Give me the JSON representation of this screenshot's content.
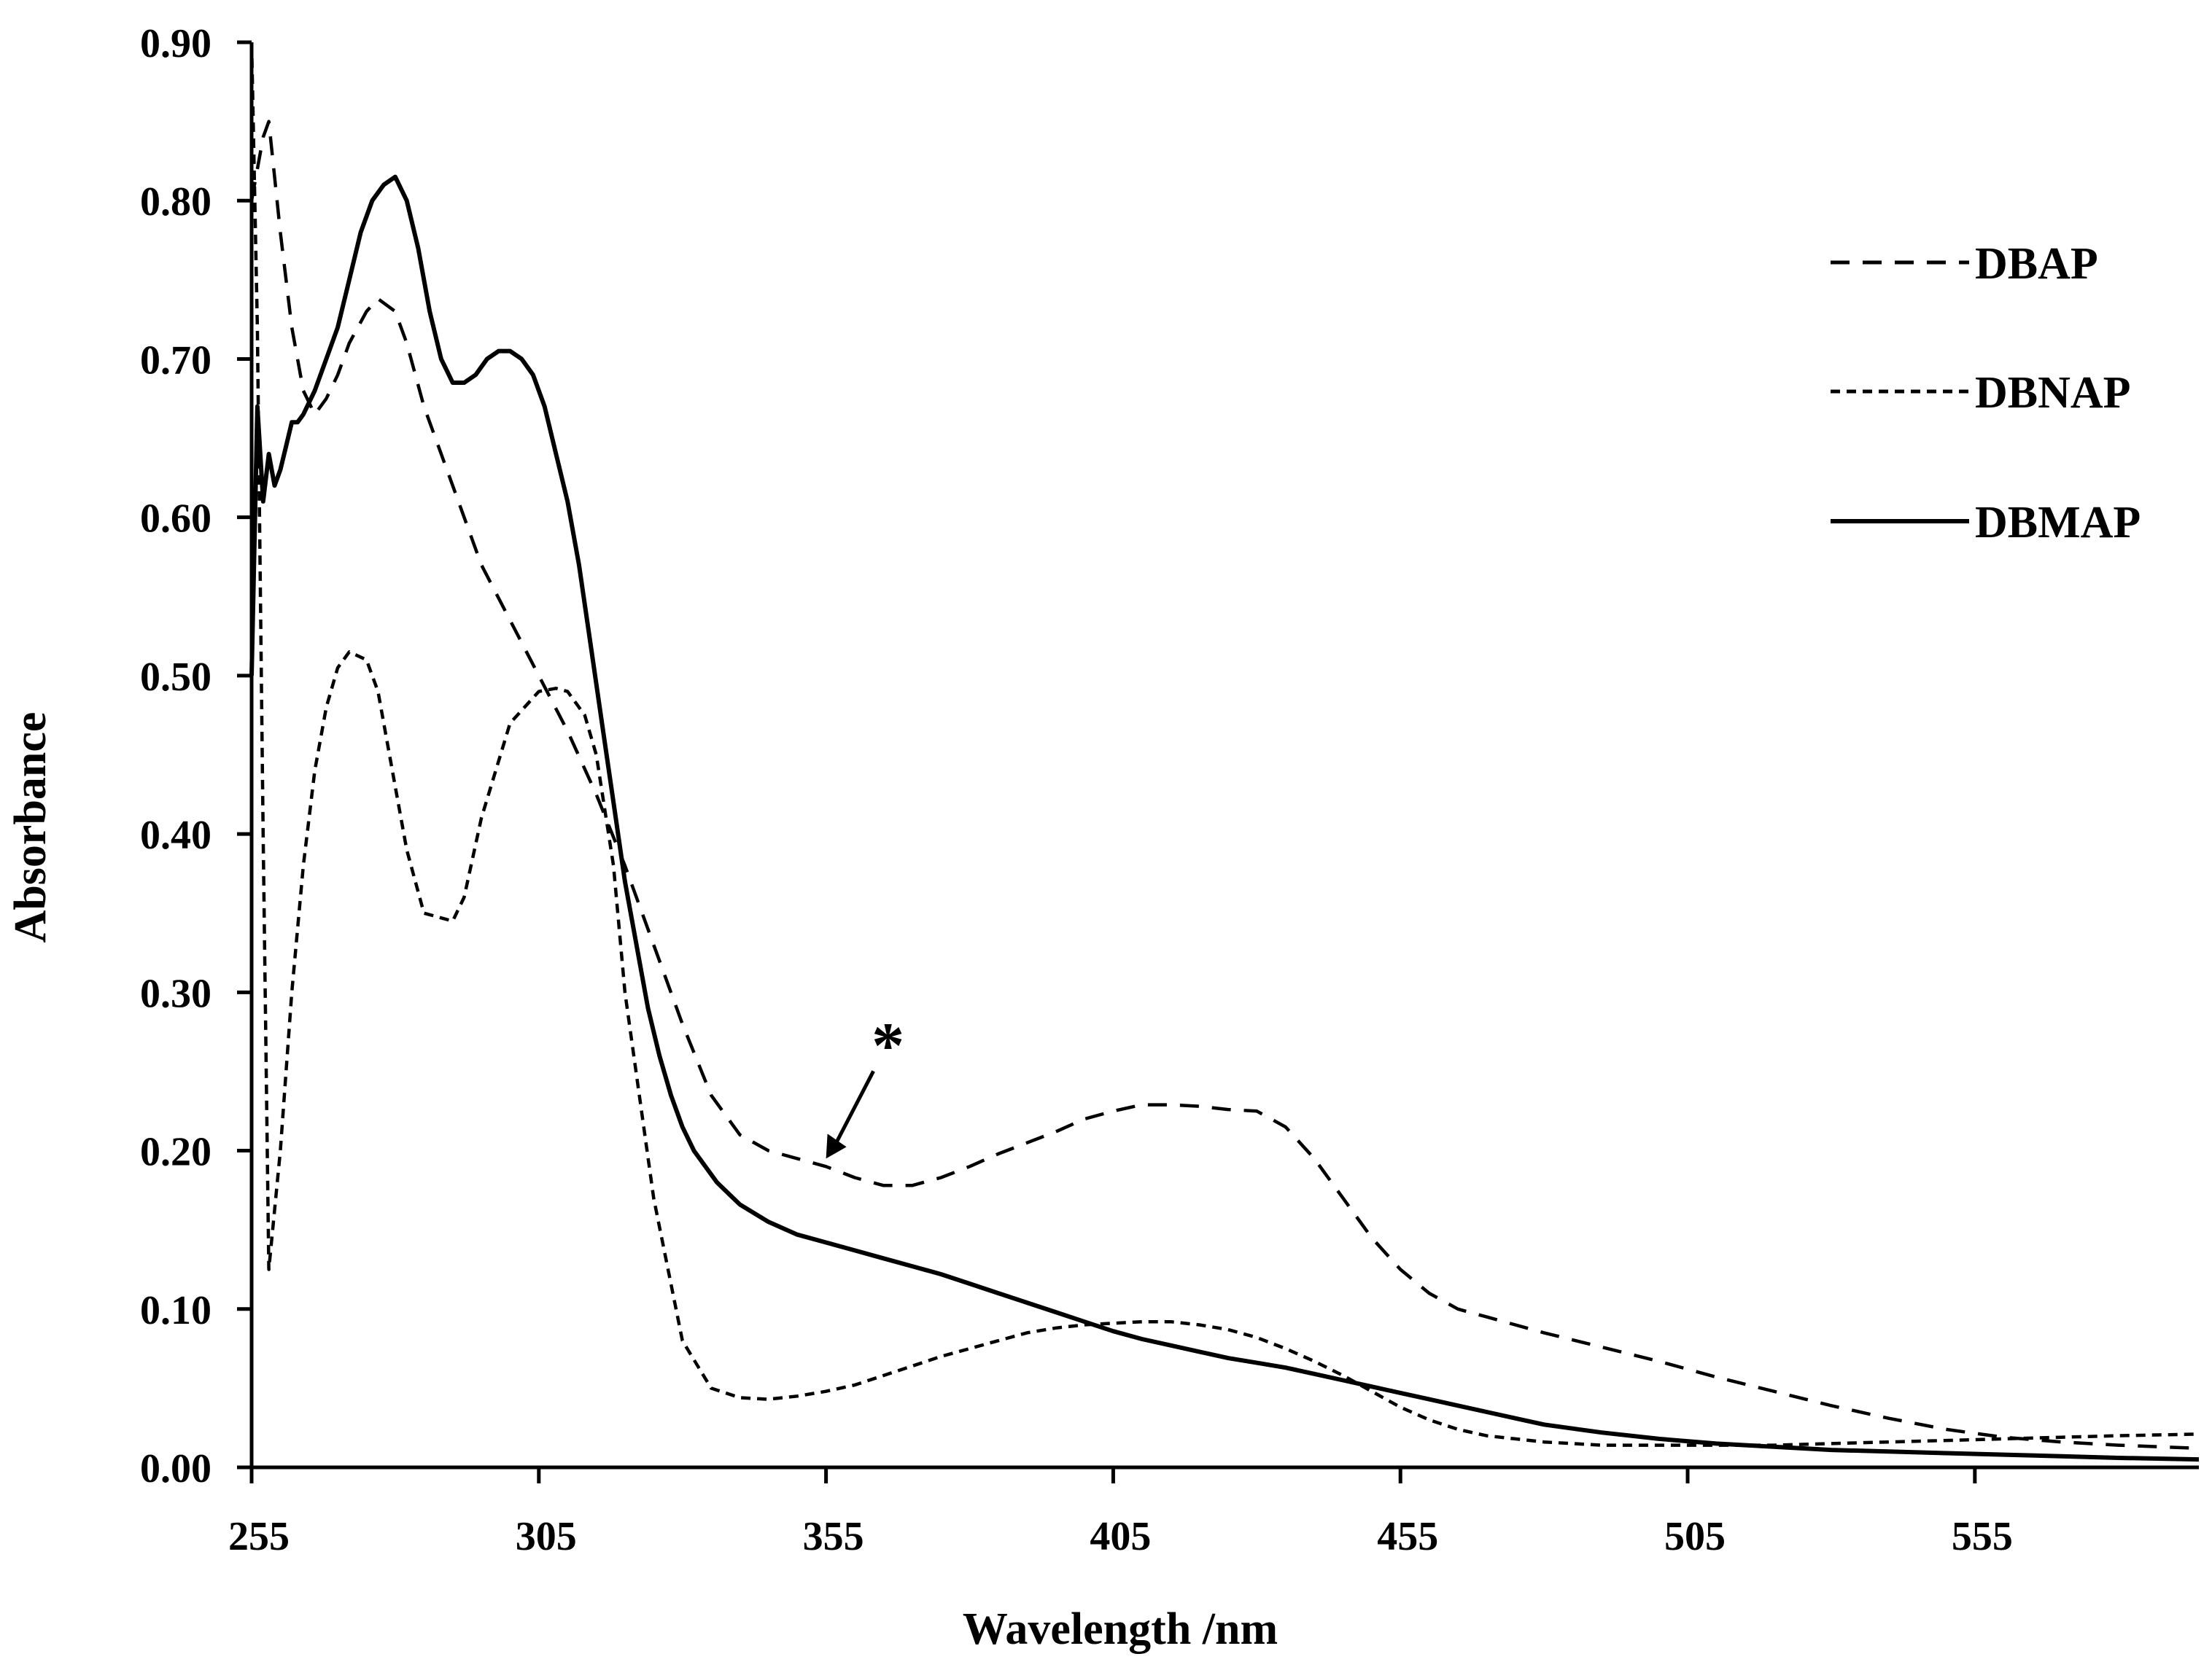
{
  "chart_data": {
    "type": "line",
    "title": "",
    "xlabel": "Wavelength /nm",
    "ylabel": "Absorbance",
    "xlim": [
      255,
      594
    ],
    "ylim": [
      0,
      0.9
    ],
    "xticks": [
      255,
      305,
      355,
      405,
      455,
      505,
      555
    ],
    "xtick_labels": [
      "255",
      "305",
      "355",
      "405",
      "455",
      "505",
      "555"
    ],
    "yticks": [
      0,
      0.1,
      0.2,
      0.3,
      0.4,
      0.5,
      0.6,
      0.7,
      0.8,
      0.9
    ],
    "ytick_labels": [
      "0.00",
      "0.10",
      "0.20",
      "0.30",
      "0.40",
      "0.50",
      "0.60",
      "0.70",
      "0.80",
      "0.90"
    ],
    "grid": false,
    "legend_position": "top-right",
    "series": [
      {
        "name": "DBAP",
        "style": "dashed",
        "color": "#000000",
        "x": [
          255,
          256,
          257,
          258,
          260,
          262,
          264,
          266,
          268,
          270,
          272,
          275,
          277,
          280,
          282,
          285,
          290,
          295,
          300,
          305,
          310,
          315,
          320,
          325,
          330,
          335,
          340,
          345,
          350,
          355,
          360,
          365,
          370,
          375,
          380,
          385,
          390,
          395,
          400,
          405,
          410,
          415,
          420,
          425,
          430,
          435,
          440,
          445,
          450,
          455,
          460,
          465,
          470,
          480,
          490,
          500,
          510,
          520,
          530,
          540,
          550,
          560,
          570,
          580,
          594
        ],
        "y": [
          0.8,
          0.82,
          0.84,
          0.85,
          0.78,
          0.72,
          0.68,
          0.665,
          0.675,
          0.69,
          0.71,
          0.73,
          0.738,
          0.73,
          0.71,
          0.67,
          0.62,
          0.57,
          0.535,
          0.5,
          0.465,
          0.425,
          0.38,
          0.33,
          0.28,
          0.235,
          0.21,
          0.2,
          0.195,
          0.19,
          0.183,
          0.178,
          0.178,
          0.183,
          0.19,
          0.198,
          0.205,
          0.212,
          0.22,
          0.225,
          0.229,
          0.229,
          0.228,
          0.226,
          0.225,
          0.215,
          0.195,
          0.17,
          0.145,
          0.125,
          0.11,
          0.1,
          0.095,
          0.085,
          0.076,
          0.067,
          0.057,
          0.048,
          0.039,
          0.031,
          0.024,
          0.019,
          0.016,
          0.014,
          0.012
        ]
      },
      {
        "name": "DBNAP",
        "style": "dotted",
        "color": "#000000",
        "x": [
          255,
          256,
          257,
          258,
          260,
          262,
          264,
          266,
          268,
          270,
          272,
          275,
          277,
          280,
          282,
          285,
          290,
          292,
          295,
          300,
          305,
          308,
          310,
          313,
          315,
          318,
          320,
          325,
          330,
          335,
          340,
          345,
          350,
          355,
          360,
          365,
          370,
          375,
          380,
          385,
          390,
          395,
          400,
          405,
          410,
          415,
          420,
          425,
          430,
          435,
          440,
          445,
          450,
          455,
          460,
          465,
          470,
          475,
          480,
          485,
          490,
          500,
          510,
          520,
          530,
          540,
          550,
          560,
          570,
          580,
          594
        ],
        "y": [
          0.9,
          0.72,
          0.4,
          0.125,
          0.2,
          0.3,
          0.38,
          0.44,
          0.48,
          0.505,
          0.515,
          0.51,
          0.49,
          0.43,
          0.39,
          0.35,
          0.345,
          0.36,
          0.41,
          0.47,
          0.49,
          0.492,
          0.49,
          0.475,
          0.45,
          0.38,
          0.3,
          0.17,
          0.08,
          0.05,
          0.044,
          0.043,
          0.045,
          0.048,
          0.052,
          0.058,
          0.064,
          0.07,
          0.075,
          0.08,
          0.085,
          0.088,
          0.09,
          0.091,
          0.092,
          0.092,
          0.09,
          0.087,
          0.082,
          0.075,
          0.067,
          0.058,
          0.048,
          0.038,
          0.03,
          0.024,
          0.02,
          0.018,
          0.016,
          0.015,
          0.014,
          0.014,
          0.014,
          0.014,
          0.015,
          0.016,
          0.017,
          0.018,
          0.019,
          0.02,
          0.021
        ]
      },
      {
        "name": "DBMAP",
        "style": "solid",
        "color": "#000000",
        "x": [
          255,
          256,
          257,
          258,
          259,
          260,
          261,
          262,
          263,
          264,
          266,
          268,
          270,
          272,
          274,
          276,
          278,
          280,
          282,
          284,
          286,
          288,
          290,
          292,
          294,
          296,
          298,
          300,
          302,
          304,
          306,
          308,
          310,
          312,
          314,
          316,
          318,
          320,
          322,
          324,
          326,
          328,
          330,
          332,
          334,
          336,
          338,
          340,
          345,
          350,
          355,
          360,
          365,
          370,
          375,
          380,
          385,
          390,
          395,
          400,
          405,
          410,
          415,
          420,
          425,
          430,
          435,
          440,
          445,
          450,
          455,
          460,
          465,
          470,
          475,
          480,
          490,
          500,
          510,
          520,
          530,
          540,
          550,
          560,
          570,
          580,
          594
        ],
        "y": [
          0.5,
          0.67,
          0.61,
          0.64,
          0.62,
          0.63,
          0.645,
          0.66,
          0.66,
          0.665,
          0.68,
          0.7,
          0.72,
          0.75,
          0.78,
          0.8,
          0.81,
          0.815,
          0.8,
          0.77,
          0.73,
          0.7,
          0.685,
          0.685,
          0.69,
          0.7,
          0.705,
          0.705,
          0.7,
          0.69,
          0.67,
          0.64,
          0.61,
          0.57,
          0.52,
          0.47,
          0.42,
          0.37,
          0.33,
          0.29,
          0.26,
          0.235,
          0.215,
          0.2,
          0.19,
          0.18,
          0.173,
          0.166,
          0.155,
          0.147,
          0.142,
          0.137,
          0.132,
          0.127,
          0.122,
          0.116,
          0.11,
          0.104,
          0.098,
          0.092,
          0.086,
          0.081,
          0.077,
          0.073,
          0.069,
          0.066,
          0.063,
          0.059,
          0.055,
          0.051,
          0.047,
          0.043,
          0.039,
          0.035,
          0.031,
          0.027,
          0.022,
          0.018,
          0.015,
          0.013,
          0.011,
          0.01,
          0.009,
          0.008,
          0.007,
          0.006,
          0.005
        ]
      }
    ],
    "annotations": [
      {
        "text": "*",
        "points_to": {
          "series": "DBAP",
          "x": 355,
          "y": 0.195
        },
        "arrow": true
      }
    ]
  }
}
